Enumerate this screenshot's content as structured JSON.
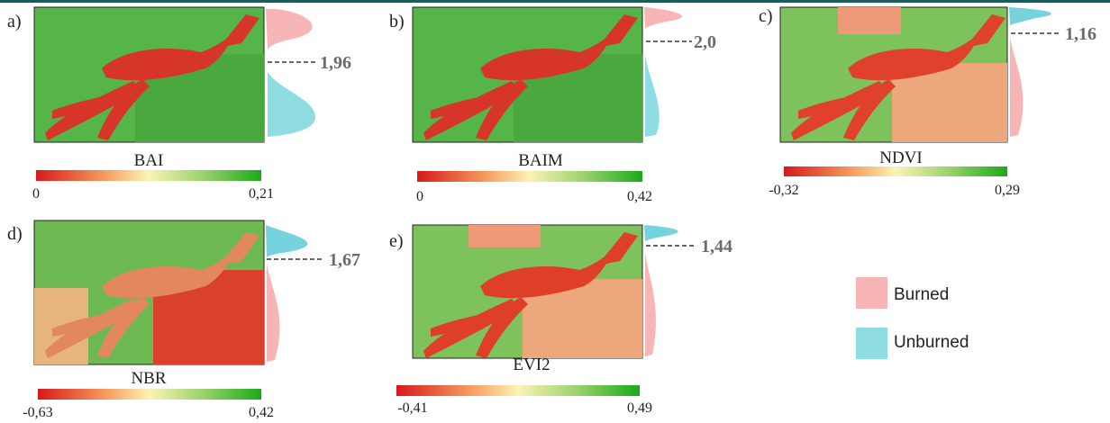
{
  "panels": [
    {
      "label": "a)",
      "index": "BAI",
      "separability": "1,96",
      "scale_min": "0",
      "scale_max": "0,21"
    },
    {
      "label": "b)",
      "index": "BAIM",
      "separability": "2,0",
      "scale_min": "0",
      "scale_max": "0,42"
    },
    {
      "label": "c)",
      "index": "NDVI",
      "separability": "1,16",
      "scale_min": "-0,32",
      "scale_max": "0,29"
    },
    {
      "label": "d)",
      "index": "NBR",
      "separability": "1,67",
      "scale_min": "-0,63",
      "scale_max": "0,42"
    },
    {
      "label": "e)",
      "index": "EVI2",
      "separability": "1,44",
      "scale_min": "-0,41",
      "scale_max": "0,49"
    }
  ],
  "legend": [
    {
      "label": "Burned"
    },
    {
      "label": "Unburned"
    }
  ]
}
